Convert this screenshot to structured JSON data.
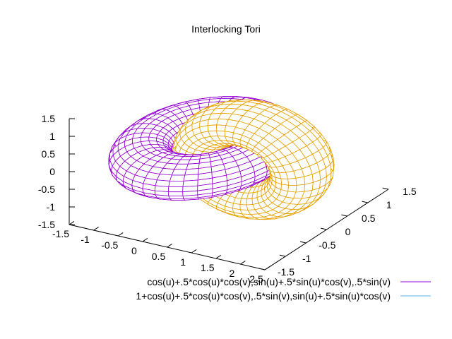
{
  "chart_data": {
    "type": "surface3d",
    "title": "Interlocking Tori",
    "xlabel": "",
    "ylabel": "",
    "zlabel": "",
    "xlim": [
      -1.5,
      2.5
    ],
    "ylim": [
      -1.5,
      1.5
    ],
    "zlim": [
      -1.5,
      1.5
    ],
    "x_ticks": [
      "-1.5",
      "-1",
      "-0.5",
      "0",
      "0.5",
      "1",
      "1.5",
      "2",
      "2.5"
    ],
    "y_ticks": [
      "-1.5",
      "-1",
      "-0.5",
      "0",
      "0.5",
      "1",
      "1.5"
    ],
    "z_ticks": [
      "-1.5",
      "-1",
      "-0.5",
      "0",
      "0.5",
      "1",
      "1.5"
    ],
    "grid": false,
    "legend_position": "bottom-right",
    "series": [
      {
        "name": "cos(u)+.5*cos(u)*cos(v),sin(u)+.5*sin(u)*cos(v),.5*sin(v)",
        "color": "#9400d3",
        "x": "cos(u)+.5*cos(u)*cos(v)",
        "y": "sin(u)+.5*sin(u)*cos(v)",
        "z": ".5*sin(v)"
      },
      {
        "name": "1+cos(u)+.5*cos(u)*cos(v),.5*sin(v),sin(u)+.5*sin(u)*cos(v)",
        "color": "#e6a000",
        "legend_color": "#56b4e9",
        "x": "1+cos(u)+.5*cos(u)*cos(v)",
        "y": ".5*sin(v)",
        "z": "sin(u)+.5*sin(u)*cos(v)"
      }
    ]
  }
}
